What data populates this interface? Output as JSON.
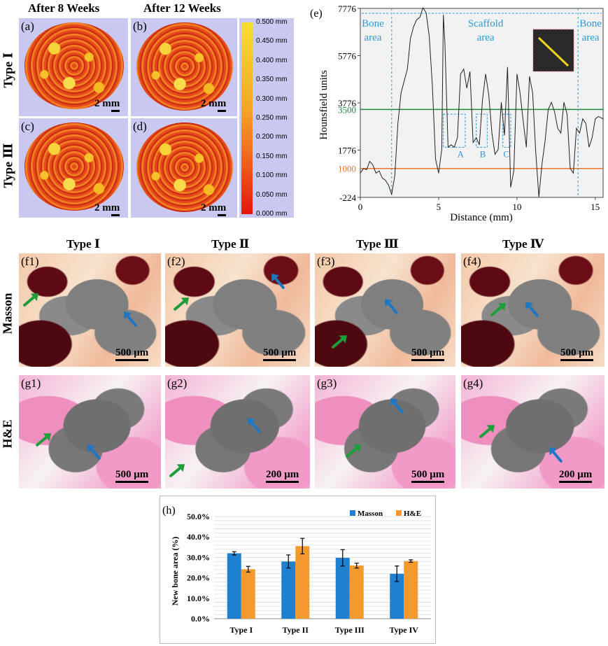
{
  "micro_ct": {
    "col_headers": [
      "After 8 Weeks",
      "After 12 Weeks"
    ],
    "row_labels": [
      "Type Ⅰ",
      "Type Ⅲ"
    ],
    "panels": [
      "(a)",
      "(b)",
      "(c)",
      "(d)"
    ],
    "scale_bar": "2 mm",
    "colorbar_ticks": [
      "0.500 mm",
      "0.450 mm",
      "0.400 mm",
      "0.350 mm",
      "0.300 mm",
      "0.250 mm",
      "0.200 mm",
      "0.150 mm",
      "0.100 mm",
      "0.050 mm",
      "0.000 mm"
    ],
    "colors": {
      "high": "#f6e02c",
      "mid": "#f07d22",
      "low": "#e5140c",
      "bg": "#c8c8f0"
    }
  },
  "histology": {
    "col_headers": [
      "Type Ⅰ",
      "Type Ⅱ",
      "Type Ⅲ",
      "Type Ⅳ"
    ],
    "row_labels": [
      "Masson",
      "H&E"
    ],
    "masson_panels": [
      "(f1)",
      "(f2)",
      "(f3)",
      "(f4)"
    ],
    "he_panels": [
      "(g1)",
      "(g2)",
      "(g3)",
      "(g4)"
    ],
    "masson_scale": [
      "500 μm",
      "500 μm",
      "500 μm",
      "500 μm"
    ],
    "he_scale": [
      "500 μm",
      "200 μm",
      "500 μm",
      "200 μm"
    ]
  },
  "chart_data": [
    {
      "panel": "(e)",
      "type": "line",
      "xlabel": "Distance (mm)",
      "ylabel": "Hounsfield units",
      "xlim": [
        0,
        15.5
      ],
      "ylim": [
        -224,
        7776
      ],
      "xticks": [
        "0",
        "5",
        "10",
        "15"
      ],
      "yticks": [
        "-224",
        "1776",
        "3776",
        "5776",
        "7776"
      ],
      "hlines": [
        {
          "value": 3500,
          "label": "3500",
          "color": "#1b8a3a"
        },
        {
          "value": 1000,
          "label": "1000",
          "color": "#e8762b"
        }
      ],
      "region_labels": [
        {
          "text": [
            "Bone",
            "area"
          ],
          "x": 0.8
        },
        {
          "text": [
            "Scaffold",
            "area"
          ],
          "x": 8.0
        },
        {
          "text": [
            "Bone",
            "area"
          ],
          "x": 14.7
        }
      ],
      "region_bounds": [
        2.0,
        13.9
      ],
      "boxes": [
        {
          "label": "A",
          "x0": 5.3,
          "x1": 6.7,
          "y0": 1900,
          "y1": 3300
        },
        {
          "label": "B",
          "x0": 7.4,
          "x1": 8.1,
          "y0": 1900,
          "y1": 3300
        },
        {
          "label": "C",
          "x0": 9.1,
          "x1": 9.6,
          "y0": 1900,
          "y1": 3300
        }
      ],
      "x": [
        0,
        0.2,
        0.4,
        0.6,
        0.8,
        1.0,
        1.2,
        1.4,
        1.6,
        1.8,
        2.0,
        2.2,
        2.4,
        2.6,
        2.8,
        3.0,
        3.2,
        3.4,
        3.6,
        3.8,
        4.0,
        4.2,
        4.4,
        4.6,
        4.8,
        5.0,
        5.2,
        5.3,
        5.4,
        5.6,
        5.8,
        6.0,
        6.2,
        6.4,
        6.6,
        6.8,
        7.0,
        7.2,
        7.4,
        7.6,
        7.8,
        8.0,
        8.2,
        8.4,
        8.6,
        8.8,
        9.0,
        9.2,
        9.4,
        9.6,
        9.8,
        10.0,
        10.2,
        10.4,
        10.6,
        10.8,
        11.0,
        11.2,
        11.4,
        11.6,
        11.8,
        12.0,
        12.2,
        12.4,
        12.6,
        12.8,
        13.0,
        13.2,
        13.4,
        13.6,
        13.8,
        14.0,
        14.2,
        14.4,
        14.6,
        14.8,
        15.0,
        15.2,
        15.5
      ],
      "y": [
        800,
        1000,
        950,
        1300,
        1150,
        800,
        900,
        600,
        500,
        300,
        -100,
        700,
        2900,
        4200,
        4700,
        5200,
        6500,
        7000,
        7300,
        7400,
        7800,
        7600,
        6600,
        4500,
        1400,
        800,
        1800,
        7500,
        6300,
        1900,
        2000,
        1900,
        2300,
        5000,
        5200,
        4400,
        5100,
        2100,
        2300,
        2000,
        3900,
        5000,
        4100,
        2500,
        1600,
        1800,
        3800,
        2400,
        5300,
        200,
        900,
        5000,
        4200,
        3000,
        1900,
        4900,
        4200,
        1700,
        -200,
        1200,
        2200,
        3500,
        3800,
        3400,
        2700,
        2500,
        3800,
        3300,
        1000,
        800,
        2700,
        2500,
        3100,
        2900,
        1900,
        2300,
        3100,
        3200,
        3100
      ]
    },
    {
      "panel": "(h)",
      "type": "bar",
      "ylabel": "New bone area (%)",
      "categories": [
        "Type I",
        "Type II",
        "Type III",
        "Type IV"
      ],
      "ylim": [
        0,
        50
      ],
      "yticks": [
        "0.0%",
        "10.0%",
        "20.0%",
        "30.0%",
        "40.0%",
        "50.0%"
      ],
      "legend_position": "top-right",
      "series": [
        {
          "name": "Masson",
          "color": "#1f80d0",
          "values": [
            32.0,
            28.0,
            29.8,
            22.0
          ],
          "errors": [
            0.8,
            3.2,
            4.0,
            3.8
          ]
        },
        {
          "name": "H&E",
          "color": "#f39a2e",
          "values": [
            24.2,
            35.5,
            26.0,
            28.2
          ],
          "errors": [
            1.4,
            3.8,
            1.2,
            0.6
          ]
        }
      ]
    }
  ]
}
